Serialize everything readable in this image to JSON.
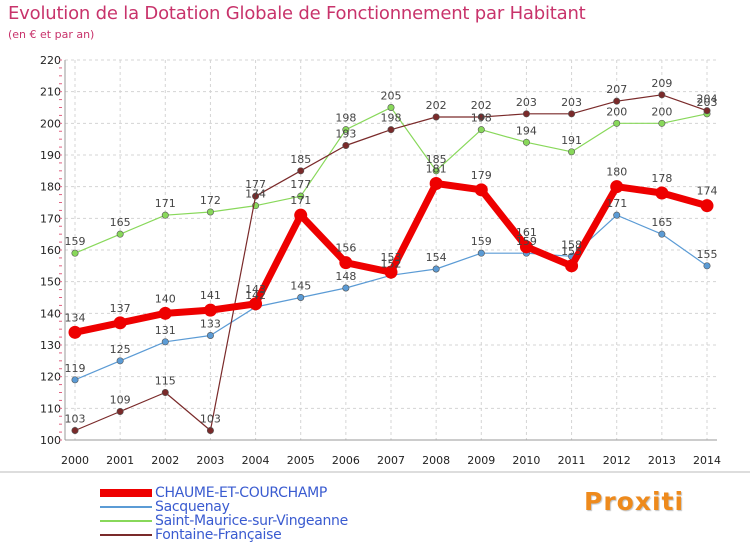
{
  "chart_data": {
    "type": "line",
    "title": "Evolution de la Dotation Globale de Fonctionnement par Habitant",
    "subtitle": "(en € et par an)",
    "categories": [
      "2000",
      "2001",
      "2002",
      "2003",
      "2004",
      "2005",
      "2006",
      "2007",
      "2008",
      "2009",
      "2010",
      "2011",
      "2012",
      "2013",
      "2014"
    ],
    "ylim": [
      100,
      220
    ],
    "yticks": [
      100,
      110,
      120,
      130,
      140,
      150,
      160,
      170,
      180,
      190,
      200,
      210,
      220
    ],
    "grid": true,
    "legend_position": "bottom-left",
    "series": [
      {
        "name": "CHAUME-ET-COURCHAMP",
        "color": "#ee0000",
        "emphasis": true,
        "values": [
          134,
          137,
          140,
          141,
          143,
          171,
          156,
          153,
          181,
          179,
          161,
          155,
          180,
          178,
          174
        ]
      },
      {
        "name": "Sacquenay",
        "color": "#5b9bd5",
        "values": [
          119,
          125,
          131,
          133,
          142,
          145,
          148,
          152,
          154,
          159,
          159,
          158,
          171,
          165,
          155
        ]
      },
      {
        "name": "Saint-Maurice-sur-Vingeanne",
        "color": "#88d85a",
        "values": [
          159,
          165,
          171,
          172,
          174,
          177,
          198,
          205,
          185,
          198,
          194,
          191,
          200,
          200,
          203
        ]
      },
      {
        "name": "Fontaine-Française",
        "color": "#7a2a2a",
        "values": [
          103,
          109,
          115,
          103,
          177,
          185,
          193,
          198,
          202,
          202,
          203,
          203,
          207,
          209,
          204
        ]
      }
    ]
  },
  "branding": {
    "logo_text": "Proxiti"
  }
}
